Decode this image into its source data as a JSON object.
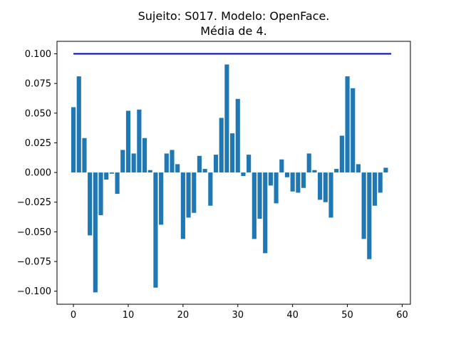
{
  "chart_data": {
    "type": "bar",
    "title_line1": "Sujeito: S017. Modelo: OpenFace.",
    "title_line2": "Média de 4.",
    "xlabel": "",
    "ylabel": "",
    "xlim": [
      -3,
      61.5
    ],
    "ylim": [
      -0.111,
      0.1105
    ],
    "x_ticks": [
      0,
      10,
      20,
      30,
      40,
      50,
      60
    ],
    "x_tick_labels": [
      "0",
      "10",
      "20",
      "30",
      "40",
      "50",
      "60"
    ],
    "y_ticks": [
      0.1,
      0.075,
      0.05,
      0.025,
      0.0,
      -0.025,
      -0.05,
      -0.075,
      -0.1
    ],
    "y_tick_labels": [
      "0.100",
      "0.075",
      "0.050",
      "0.025",
      "0.000",
      "−0.025",
      "−0.050",
      "−0.075",
      "−0.100"
    ],
    "bar_color": "#1f77b4",
    "x": [
      0,
      1,
      2,
      3,
      4,
      5,
      6,
      7,
      8,
      9,
      10,
      11,
      12,
      13,
      14,
      15,
      16,
      17,
      18,
      19,
      20,
      21,
      22,
      23,
      24,
      25,
      26,
      27,
      28,
      29,
      30,
      31,
      32,
      33,
      34,
      35,
      36,
      37,
      38,
      39,
      40,
      41,
      42,
      43,
      44,
      45,
      46,
      47,
      48,
      49,
      50,
      51,
      52,
      53,
      54,
      55,
      56,
      57
    ],
    "values": [
      0.055,
      0.081,
      0.029,
      -0.053,
      -0.101,
      -0.036,
      -0.006,
      -0.001,
      -0.018,
      0.019,
      0.052,
      0.016,
      0.053,
      0.029,
      0.002,
      -0.097,
      -0.044,
      0.016,
      0.019,
      0.007,
      -0.056,
      -0.038,
      -0.034,
      0.014,
      0.003,
      -0.028,
      0.015,
      0.046,
      0.091,
      0.033,
      0.062,
      -0.003,
      0.015,
      -0.056,
      -0.039,
      -0.068,
      -0.011,
      -0.026,
      0.011,
      -0.004,
      -0.016,
      -0.017,
      -0.013,
      0.016,
      0.002,
      -0.023,
      -0.025,
      -0.038,
      0.003,
      0.031,
      0.081,
      0.071,
      0.007,
      -0.056,
      -0.073,
      -0.028,
      -0.017,
      0.004
    ],
    "reference_line": {
      "x_start": 0,
      "x_end": 58,
      "y": 0.1,
      "color": "#0000cc"
    },
    "grid": false,
    "legend": "none"
  }
}
